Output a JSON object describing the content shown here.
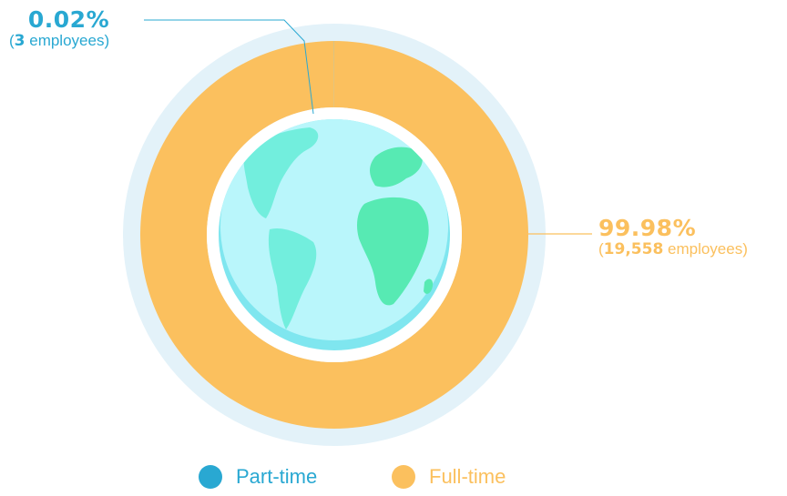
{
  "chart_data": {
    "type": "pie",
    "categories": [
      "Part-time",
      "Full-time"
    ],
    "values": [
      0.02,
      99.98
    ],
    "counts": [
      3,
      19558
    ],
    "colors": [
      "#29a8d2",
      "#fbc05e"
    ],
    "legend_position": "bottom"
  },
  "callouts": {
    "part_time": {
      "percent": "0.02%",
      "count": "3",
      "unit": " employees",
      "open": "(",
      "close": ")"
    },
    "full_time": {
      "percent": "99.98%",
      "count": "19,558",
      "unit": " employees",
      "open": "(",
      "close": ")"
    }
  },
  "legend": {
    "items": [
      {
        "label": "Part-time",
        "color": "#29a8d2"
      },
      {
        "label": "Full-time",
        "color": "#fbc05e"
      }
    ]
  },
  "globe": {
    "icon": "earth-globe-icon"
  }
}
